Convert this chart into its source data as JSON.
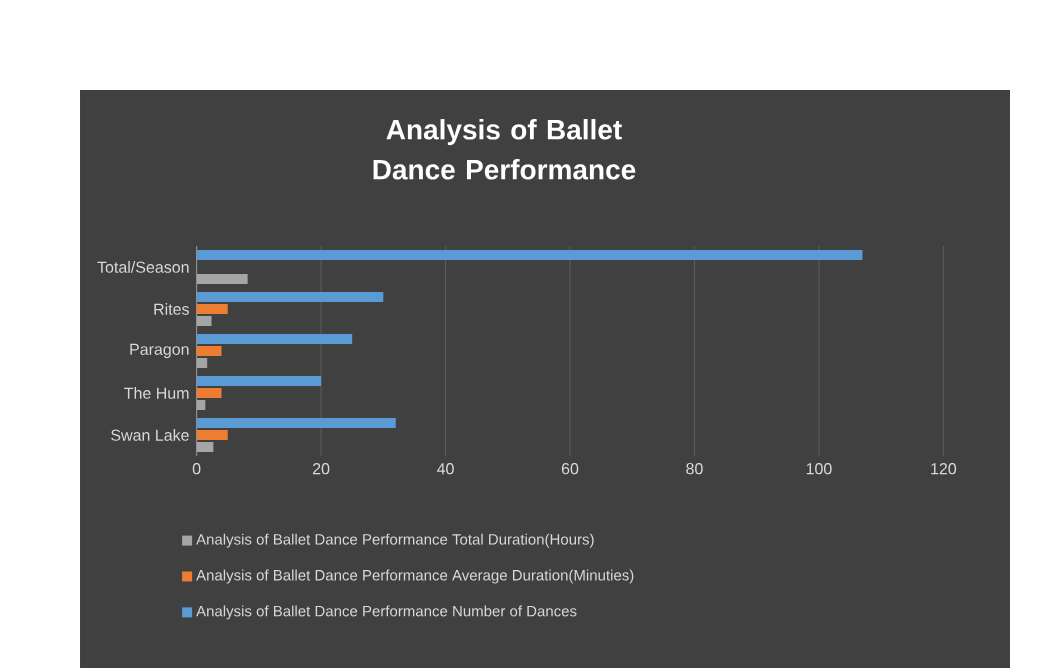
{
  "chart_data": {
    "type": "bar",
    "orientation": "horizontal",
    "title": "Analysis of Ballet Dance Performance",
    "categories": [
      "Total/Season",
      "Rites",
      "Paragon",
      "The Hum",
      "Swan Lake"
    ],
    "series": [
      {
        "name": "Analysis of Ballet Dance Performance Total Duration(Hours)",
        "color": "#a5a5a5",
        "values": [
          8.2,
          2.4,
          1.7,
          1.4,
          2.7
        ]
      },
      {
        "name": "Analysis of Ballet Dance Performance Average Duration(Minuties)",
        "color": "#ed7d31",
        "values": [
          null,
          5,
          4,
          4,
          5
        ]
      },
      {
        "name": "Analysis of Ballet Dance Performance Number of Dances",
        "color": "#5b9bd5",
        "values": [
          107,
          30,
          25,
          20,
          32
        ]
      }
    ],
    "xlim": [
      0,
      120
    ],
    "xticks": [
      0,
      20,
      40,
      60,
      80,
      100,
      120
    ],
    "grid": "x",
    "legend": "bottom"
  }
}
